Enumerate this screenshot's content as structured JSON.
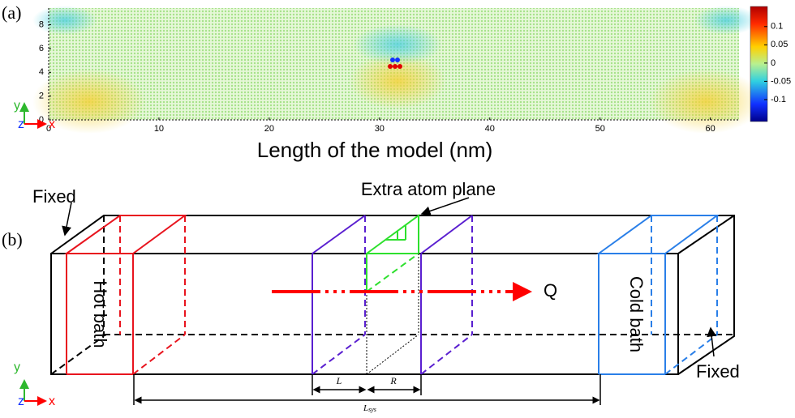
{
  "panel_a": {
    "label": "(a)",
    "xlabel": "Length of the model (nm)",
    "xlim": [
      0,
      62.6
    ],
    "xticks": [
      0,
      10,
      20,
      30,
      40,
      50,
      60
    ],
    "ylim": [
      0,
      9.4
    ],
    "yticks": [
      0,
      2,
      4,
      6,
      8
    ],
    "colorbar": {
      "lim": [
        -0.16,
        0.155
      ],
      "ticks": [
        0.1,
        0.05,
        0,
        -0.05,
        -0.1
      ]
    },
    "triad": {
      "y": "y",
      "z": "z",
      "x": "x"
    }
  },
  "panel_b": {
    "label": "(b)",
    "fixed_top": "Fixed",
    "extra_plane": "Extra atom plane",
    "hot": "Hot bath",
    "cold": "Cold bath",
    "q": "Q",
    "fixed_bottom": "Fixed",
    "l": "L",
    "r": "R",
    "lsys": {
      "main": "L",
      "sub": "sys"
    },
    "triad": {
      "y": "y",
      "z": "z",
      "x": "x"
    }
  }
}
